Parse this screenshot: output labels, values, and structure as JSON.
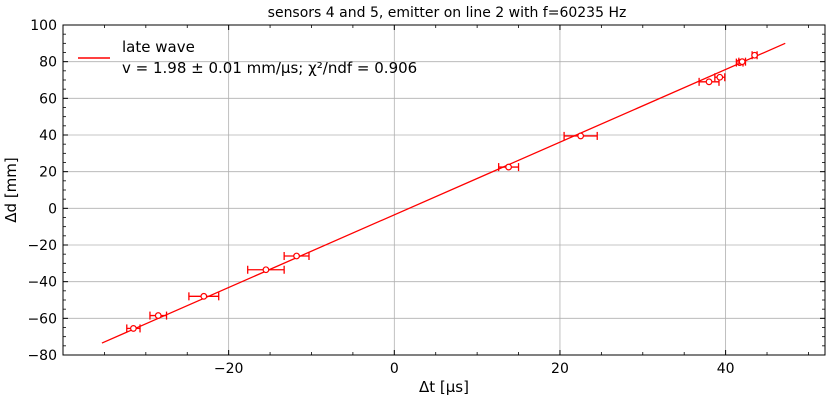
{
  "chart_data": {
    "type": "scatter",
    "title": "sensors 4 and 5, emitter on line 2 with f=60235 Hz",
    "xlabel": "Δt [μs]",
    "ylabel": "Δd [mm]",
    "xlim": [
      -40,
      52
    ],
    "ylim": [
      -80,
      100
    ],
    "x_ticks": [
      -20,
      0,
      20,
      40
    ],
    "y_ticks": [
      -80,
      -60,
      -40,
      -20,
      0,
      20,
      40,
      60,
      80,
      100
    ],
    "x_tick_labels": [
      "−20",
      "0",
      "20",
      "40"
    ],
    "y_tick_labels": [
      "−80",
      "−60",
      "−40",
      "−20",
      "0",
      "20",
      "40",
      "60",
      "80",
      "100"
    ],
    "grid": true,
    "legend_position": "top-left",
    "color": "#ff0000",
    "series": [
      {
        "name": "late wave",
        "annotation": "v = 1.98 ± 0.01 mm/μs; χ²/ndf = 0.906",
        "points": [
          {
            "x": -31.5,
            "y": -65.5,
            "xerr": 0.8
          },
          {
            "x": -28.5,
            "y": -58.5,
            "xerr": 1.0
          },
          {
            "x": -23.0,
            "y": -48.0,
            "xerr": 1.8
          },
          {
            "x": -15.5,
            "y": -33.5,
            "xerr": 2.2
          },
          {
            "x": -11.8,
            "y": -26.0,
            "xerr": 1.5
          },
          {
            "x": 13.8,
            "y": 22.5,
            "xerr": 1.2
          },
          {
            "x": 22.5,
            "y": 39.5,
            "xerr": 2.0
          },
          {
            "x": 38.0,
            "y": 69.0,
            "xerr": 1.2
          },
          {
            "x": 39.3,
            "y": 71.5,
            "xerr": 0.6
          },
          {
            "x": 41.7,
            "y": 79.5,
            "xerr": 0.4
          },
          {
            "x": 42.0,
            "y": 80.0,
            "xerr": 0.4
          },
          {
            "x": 43.5,
            "y": 83.5,
            "xerr": 0.3
          }
        ],
        "fit_line": {
          "x": [
            -35.3,
            47.2
          ],
          "y": [
            -73.5,
            90.0
          ]
        }
      }
    ]
  }
}
